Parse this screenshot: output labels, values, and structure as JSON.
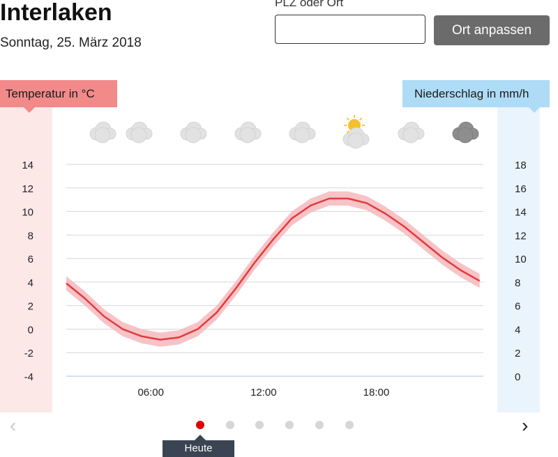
{
  "header": {
    "city": "Interlaken",
    "date": "Sonntag, 25. März 2018"
  },
  "search": {
    "label": "PLZ oder Ort",
    "value": "",
    "placeholder": "",
    "button_label": "Ort anpassen"
  },
  "axis_headers": {
    "temperature": "Temperatur in °C",
    "precipitation": "Niederschlag in mm/h"
  },
  "weather_icons": [
    "cloudy-icon",
    "cloudy-icon",
    "cloudy-icon",
    "cloudy-icon",
    "cloudy-icon",
    "partly-sunny-icon",
    "cloudy-icon",
    "dark-cloud-icon"
  ],
  "pager": {
    "prev_icon": "chevron-left-icon",
    "next_icon": "chevron-right-icon",
    "dots": 6,
    "active": 0,
    "tooltip": "Heute"
  },
  "colors": {
    "temperature_line": "#e03c3c",
    "temperature_band": "#f6b9bd",
    "temperature_header": "#f28a8a",
    "precip_header": "#aedcf6",
    "button": "#6b6b6b",
    "active_dot": "#e00000"
  },
  "chart_data": {
    "type": "line",
    "x_unit": "hour",
    "xlim": [
      1.5,
      23.7
    ],
    "xticks": [
      6,
      12,
      18
    ],
    "xtick_labels": [
      "06:00",
      "12:00",
      "18:00"
    ],
    "y_left": {
      "label": "Temperatur in °C",
      "ylim": [
        -4,
        14
      ],
      "ticks": [
        -4,
        -2,
        0,
        2,
        4,
        6,
        8,
        10,
        12,
        14
      ]
    },
    "y_right": {
      "label": "Niederschlag in mm/h",
      "ylim": [
        0,
        18
      ],
      "ticks": [
        0,
        2,
        4,
        6,
        8,
        10,
        12,
        14,
        16,
        18
      ]
    },
    "grid": true,
    "series": [
      {
        "kind": "temperature",
        "x": [
          1.5,
          2.5,
          3.5,
          4.5,
          5.5,
          6.5,
          7.5,
          8.5,
          9.5,
          10.5,
          11.5,
          12.5,
          13.5,
          14.5,
          15.5,
          16.5,
          17.5,
          18.5,
          19.5,
          20.5,
          21.5,
          22.5,
          23.5
        ],
        "values": [
          3.9,
          2.6,
          1.1,
          0.0,
          -0.6,
          -0.9,
          -0.7,
          0.0,
          1.4,
          3.4,
          5.6,
          7.6,
          9.4,
          10.5,
          11.1,
          11.1,
          10.7,
          9.8,
          8.7,
          7.4,
          6.1,
          5.0,
          4.1
        ],
        "band": 0.6
      }
    ]
  }
}
